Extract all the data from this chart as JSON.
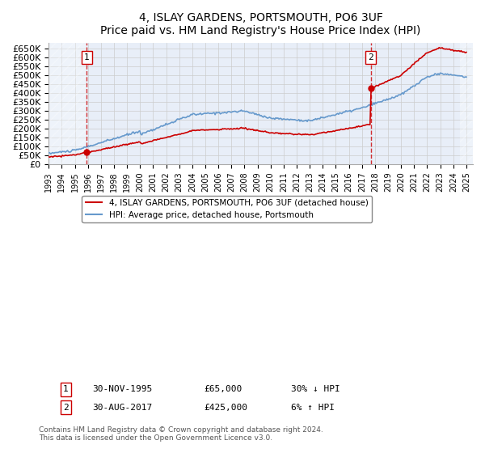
{
  "title": "4, ISLAY GARDENS, PORTSMOUTH, PO6 3UF",
  "subtitle": "Price paid vs. HM Land Registry's House Price Index (HPI)",
  "xlabel": "",
  "ylabel": "",
  "ylim": [
    0,
    680000
  ],
  "yticks": [
    0,
    50000,
    100000,
    150000,
    200000,
    250000,
    300000,
    350000,
    400000,
    450000,
    500000,
    550000,
    600000,
    650000
  ],
  "ytick_labels": [
    "£0",
    "£50K",
    "£100K",
    "£150K",
    "£200K",
    "£250K",
    "£300K",
    "£350K",
    "£400K",
    "£450K",
    "£500K",
    "£550K",
    "£600K",
    "£650K"
  ],
  "xlim_start": 1993.0,
  "xlim_end": 2025.5,
  "xticks": [
    1993,
    1994,
    1995,
    1996,
    1997,
    1998,
    1999,
    2000,
    2001,
    2002,
    2003,
    2004,
    2005,
    2006,
    2007,
    2008,
    2009,
    2010,
    2011,
    2012,
    2013,
    2014,
    2015,
    2016,
    2017,
    2018,
    2019,
    2020,
    2021,
    2022,
    2023,
    2024,
    2025
  ],
  "sale1_x": 1995.917,
  "sale1_y": 65000,
  "sale1_label": "1",
  "sale1_date": "30-NOV-1995",
  "sale1_price": "£65,000",
  "sale1_hpi": "30% ↓ HPI",
  "sale2_x": 2017.667,
  "sale2_y": 425000,
  "sale2_label": "2",
  "sale2_date": "30-AUG-2017",
  "sale2_price": "£425,000",
  "sale2_hpi": "6% ↑ HPI",
  "hpi_line_color": "#6699cc",
  "price_line_color": "#cc0000",
  "sale_marker_color": "#cc0000",
  "dashed_line_color": "#cc0000",
  "grid_color": "#cccccc",
  "bg_color": "#e8eef8",
  "hatch_color": "#cccccc",
  "legend_label1": "4, ISLAY GARDENS, PORTSMOUTH, PO6 3UF (detached house)",
  "legend_label2": "HPI: Average price, detached house, Portsmouth",
  "footnote": "Contains HM Land Registry data © Crown copyright and database right 2024.\nThis data is licensed under the Open Government Licence v3.0."
}
